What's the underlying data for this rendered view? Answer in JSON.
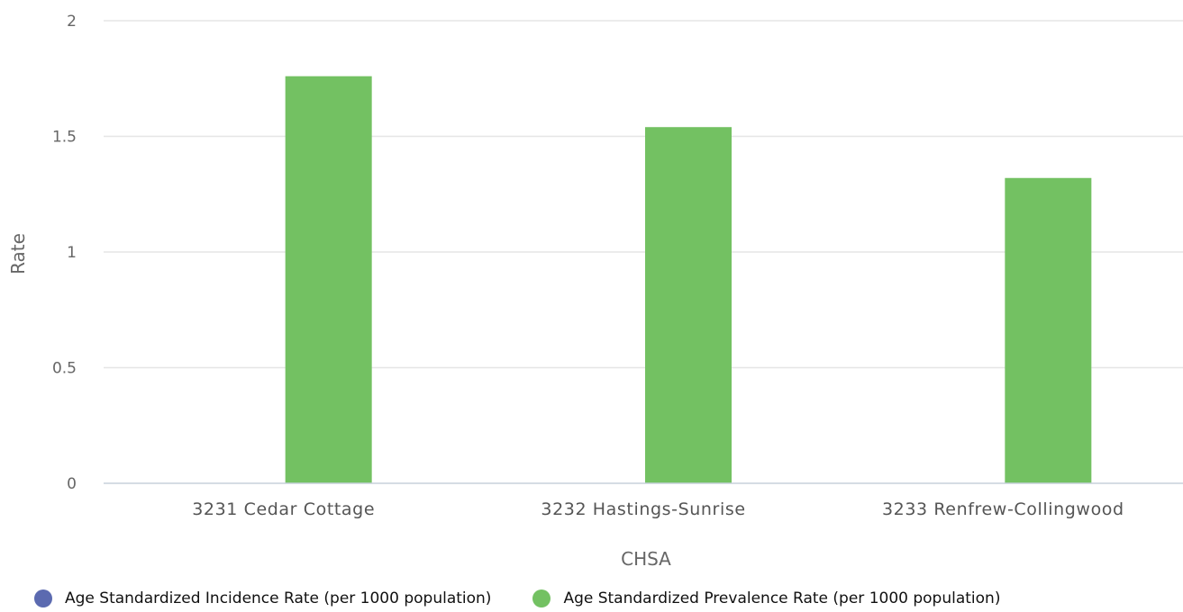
{
  "chart_data": {
    "type": "bar",
    "categories": [
      "3231 Cedar Cottage",
      "3232 Hastings-Sunrise",
      "3233 Renfrew-Collingwood"
    ],
    "series": [
      {
        "name": "Age Standardized Incidence Rate (per 1000 population)",
        "color": "#5b6ab0",
        "values": [
          0,
          0,
          0
        ]
      },
      {
        "name": "Age Standardized Prevalence Rate (per 1000 population)",
        "color": "#73c162",
        "values": [
          1.76,
          1.54,
          1.32
        ]
      }
    ],
    "xlabel": "CHSA",
    "ylabel": "Rate",
    "ylim": [
      0,
      2
    ],
    "yticks": [
      "0",
      "0.5",
      "1",
      "1.5",
      "2"
    ],
    "grid": true,
    "legend_position": "bottom"
  }
}
